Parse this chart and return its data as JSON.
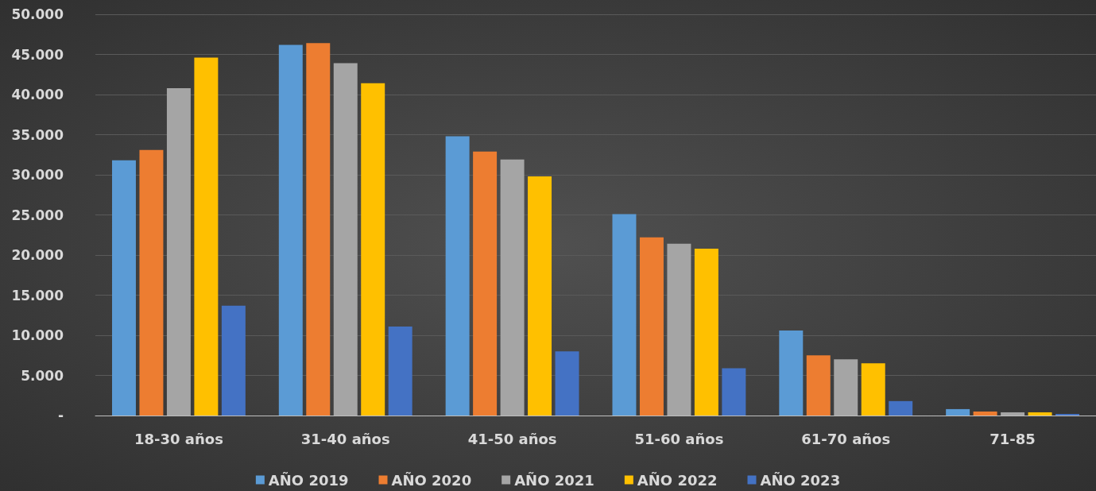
{
  "chart_data": {
    "type": "bar",
    "categories": [
      "18-30 años",
      "31-40 años",
      "41-50 años",
      "51-60 años",
      "61-70 años",
      "71-85"
    ],
    "series": [
      {
        "name": "AÑO 2019",
        "color": "#5b9bd5",
        "values": [
          31800,
          46200,
          34800,
          25100,
          10600,
          800
        ]
      },
      {
        "name": "AÑO 2020",
        "color": "#ed7d31",
        "values": [
          33100,
          46400,
          32900,
          22200,
          7500,
          500
        ]
      },
      {
        "name": "AÑO 2021",
        "color": "#a5a5a5",
        "values": [
          40800,
          43900,
          31900,
          21400,
          7000,
          400
        ]
      },
      {
        "name": "AÑO 2022",
        "color": "#ffc000",
        "values": [
          44600,
          41400,
          29800,
          20800,
          6500,
          400
        ]
      },
      {
        "name": "AÑO 2023",
        "color": "#4472c4",
        "values": [
          13700,
          11100,
          8000,
          5900,
          1800,
          200
        ]
      }
    ],
    "ylim": [
      0,
      50000
    ],
    "yticks": [
      {
        "value": 0,
        "label": "-"
      },
      {
        "value": 5000,
        "label": "5.000"
      },
      {
        "value": 10000,
        "label": "10.000"
      },
      {
        "value": 15000,
        "label": "15.000"
      },
      {
        "value": 20000,
        "label": "20.000"
      },
      {
        "value": 25000,
        "label": "25.000"
      },
      {
        "value": 30000,
        "label": "30.000"
      },
      {
        "value": 35000,
        "label": "35.000"
      },
      {
        "value": 40000,
        "label": "40.000"
      },
      {
        "value": 45000,
        "label": "45.000"
      },
      {
        "value": 50000,
        "label": "50.000"
      }
    ],
    "grid": "y",
    "legend": "bottom"
  }
}
